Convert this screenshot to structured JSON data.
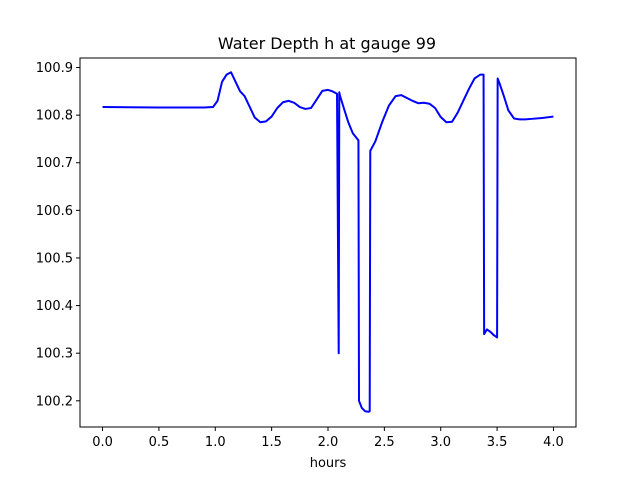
{
  "chart_data": {
    "type": "line",
    "title": "Water Depth h at gauge 99",
    "xlabel": "hours",
    "ylabel": "",
    "xlim": [
      -0.2,
      4.2
    ],
    "ylim": [
      100.145,
      100.92
    ],
    "xticks": [
      0.0,
      0.5,
      1.0,
      1.5,
      2.0,
      2.5,
      3.0,
      3.5,
      4.0
    ],
    "xtick_labels": [
      "0.0",
      "0.5",
      "1.0",
      "1.5",
      "2.0",
      "2.5",
      "3.0",
      "3.5",
      "4.0"
    ],
    "yticks": [
      100.2,
      100.3,
      100.4,
      100.5,
      100.6,
      100.7,
      100.8,
      100.9
    ],
    "ytick_labels": [
      "100.2",
      "100.3",
      "100.4",
      "100.5",
      "100.6",
      "100.7",
      "100.8",
      "100.9"
    ],
    "grid": false,
    "series": [
      {
        "color": "#0000ff",
        "x": [
          0.0,
          0.5,
          0.9,
          0.98,
          1.02,
          1.06,
          1.1,
          1.14,
          1.18,
          1.22,
          1.26,
          1.3,
          1.35,
          1.4,
          1.45,
          1.5,
          1.55,
          1.6,
          1.65,
          1.7,
          1.75,
          1.8,
          1.85,
          1.9,
          1.95,
          2.0,
          2.04,
          2.08,
          2.095,
          2.1,
          2.105,
          2.14,
          2.18,
          2.22,
          2.27,
          2.275,
          2.3,
          2.33,
          2.36,
          2.37,
          2.375,
          2.42,
          2.48,
          2.54,
          2.6,
          2.65,
          2.7,
          2.75,
          2.8,
          2.85,
          2.9,
          2.95,
          3.0,
          3.05,
          3.1,
          3.15,
          3.2,
          3.25,
          3.3,
          3.35,
          3.38,
          3.385,
          3.41,
          3.44,
          3.47,
          3.5,
          3.505,
          3.52,
          3.56,
          3.6,
          3.65,
          3.7,
          3.75,
          3.8,
          3.9,
          4.0
        ],
        "y": [
          100.817,
          100.816,
          100.816,
          100.817,
          100.83,
          100.87,
          100.885,
          100.89,
          100.87,
          100.85,
          100.84,
          100.82,
          100.795,
          100.785,
          100.787,
          100.797,
          100.815,
          100.827,
          100.83,
          100.826,
          100.817,
          100.813,
          100.815,
          100.833,
          100.851,
          100.853,
          100.85,
          100.845,
          100.3,
          100.848,
          100.842,
          100.815,
          100.785,
          100.762,
          100.747,
          100.2,
          100.185,
          100.178,
          100.177,
          100.178,
          100.725,
          100.745,
          100.785,
          100.82,
          100.84,
          100.842,
          100.836,
          100.83,
          100.825,
          100.826,
          100.824,
          100.815,
          100.796,
          100.785,
          100.786,
          100.805,
          100.83,
          100.855,
          100.877,
          100.885,
          100.885,
          100.34,
          100.35,
          100.345,
          100.338,
          100.333,
          100.877,
          100.868,
          100.84,
          100.81,
          100.793,
          100.791,
          100.791,
          100.792,
          100.794,
          100.797
        ]
      }
    ]
  }
}
